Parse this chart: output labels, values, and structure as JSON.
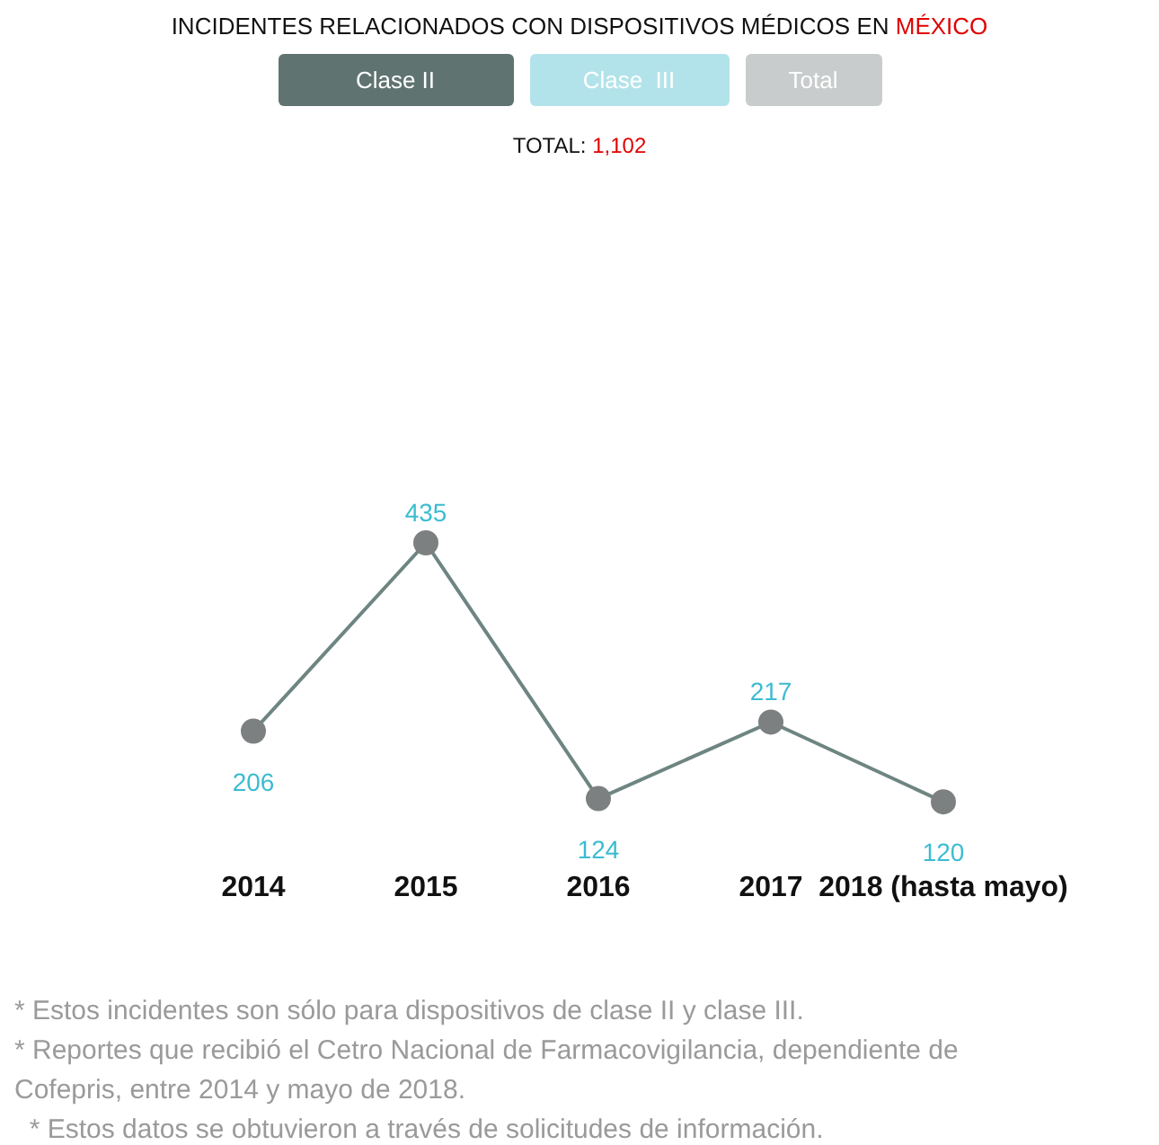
{
  "chart_data": {
    "type": "line",
    "title": "INCIDENTES RELACIONADOS CON DISPOSITIVOS MÉDICOS EN MÉXICO",
    "subtitle": "TOTAL: 1,102",
    "categories": [
      "2014",
      "2015",
      "2016",
      "2017",
      "2018 (hasta mayo)"
    ],
    "series": [
      {
        "color": "#6e8582",
        "values": [
          206,
          435,
          124,
          217,
          120
        ]
      }
    ],
    "marker": "circle",
    "data_labels": true,
    "grid": false,
    "legend": false,
    "annotations": [
      "Clase II",
      "Clase  III",
      "Total",
      "* Estos incidentes son sólo para dispositivos de clase II y clase III.",
      "* Reportes que recibió el Cetro Nacional de Farmacovigilancia, dependiente de Cofepris, entre 2014 y mayo de 2018.",
      "  * Estos datos se obtuvieron a través de solicitudes de información."
    ]
  }
}
